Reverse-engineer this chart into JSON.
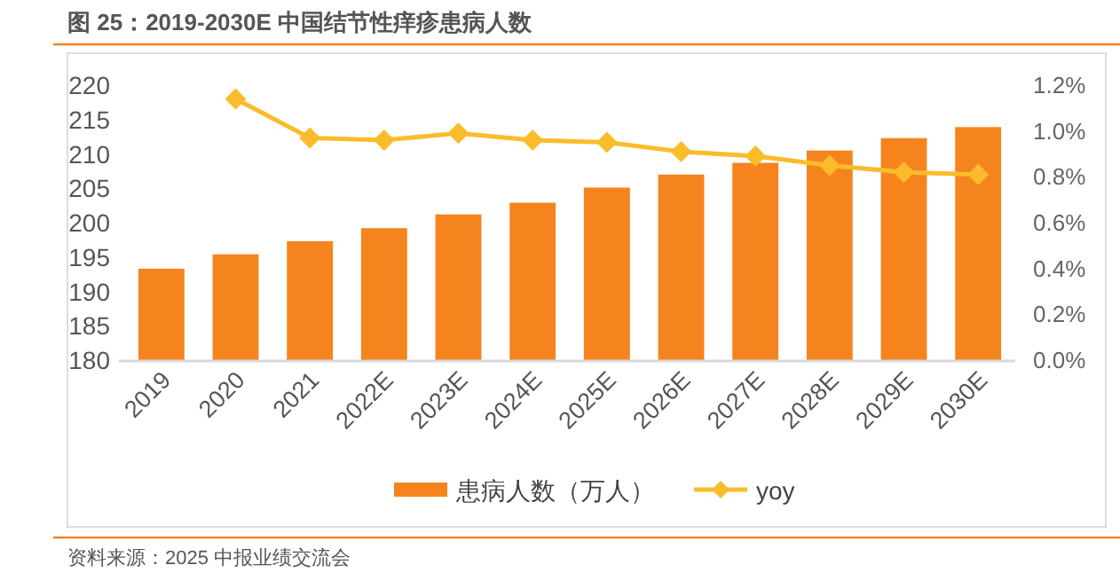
{
  "chart_data": {
    "type": "bar",
    "title": "图 25：2019-2030E 中国结节性痒疹患病人数",
    "categories": [
      "2019",
      "2020",
      "2021",
      "2022E",
      "2023E",
      "2024E",
      "2025E",
      "2026E",
      "2027E",
      "2028E",
      "2029E",
      "2030E"
    ],
    "series": [
      {
        "name": "患病人数（万人）",
        "color": "#f5841f",
        "values": [
          193.3,
          195.4,
          197.3,
          199.2,
          201.2,
          202.9,
          205.1,
          207.0,
          208.7,
          210.5,
          212.3,
          213.9
        ]
      },
      {
        "name": "yoy",
        "type": "line",
        "axis": "y2",
        "color": "#fbbc2b",
        "marker": "diamond",
        "values": [
          null,
          1.14,
          0.97,
          0.96,
          0.99,
          0.96,
          0.95,
          0.91,
          0.89,
          0.85,
          0.82,
          0.81
        ]
      }
    ],
    "ylim": [
      180,
      220
    ],
    "yticks": [
      180,
      185,
      190,
      195,
      200,
      205,
      210,
      215,
      220
    ],
    "y2lim": [
      0,
      1.2
    ],
    "y2ticks": [
      {
        "value": 0,
        "label": "0.0%"
      },
      {
        "value": 0.2,
        "label": "0.2%"
      },
      {
        "value": 0.4,
        "label": "0.4%"
      },
      {
        "value": 0.6,
        "label": "0.6%"
      },
      {
        "value": 0.8,
        "label": "0.8%"
      },
      {
        "value": 1.0,
        "label": "1.0%"
      },
      {
        "value": 1.2,
        "label": "1.2%"
      }
    ],
    "legend": "bottom",
    "annotations": [
      "资料来源：2025 中报业绩交流会"
    ]
  }
}
